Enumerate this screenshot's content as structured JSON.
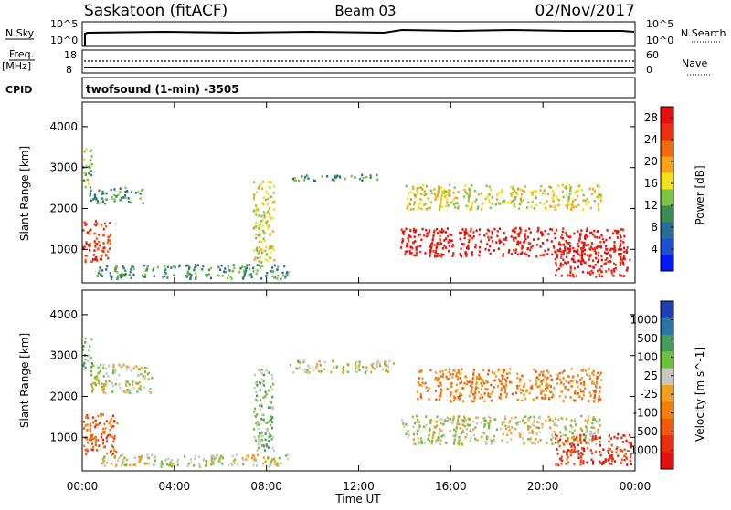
{
  "header": {
    "site": "Saskatoon (fitACF)",
    "beam": "Beam 03",
    "date": "02/Nov/2017"
  },
  "side_labels": {
    "nsky": "N.Sky",
    "nsky_top": "10^5",
    "nsky_bottom": "10^0",
    "nsearch": "N.Search",
    "nsearch_top": "10^5",
    "nsearch_bottom": "10^0",
    "freq": "Freq.",
    "freq_unit": "[MHz]",
    "freq_top": "18",
    "freq_bottom": "8",
    "nave": "Nave",
    "nave_top": "60",
    "nave_bottom": "0",
    "cpid": "CPID",
    "cpid_text": "twofsound (1-min) -3505"
  },
  "colors": {
    "power": [
      "#0019ff",
      "#1e4fd1",
      "#2a6e96",
      "#3c8c56",
      "#7bc446",
      "#f2e21a",
      "#f7a41a",
      "#f06a10",
      "#ea3010",
      "#e61010"
    ],
    "velocity": [
      "#1f3fb5",
      "#2c74a8",
      "#4b9a5d",
      "#6fc03a",
      "#c8c8c0",
      "#f0a020",
      "#f07f10",
      "#ef5a10",
      "#e82d10",
      "#e51010"
    ],
    "ground_scatter": "#c8c8c0"
  },
  "chart_data": [
    {
      "type": "heatmap",
      "name": "power",
      "xlabel": "",
      "ylabel": "Slant Range [km]",
      "xlim": [
        "00:00",
        "00:00"
      ],
      "ylim": [
        180,
        4600
      ],
      "x_ticks": [
        "00:00",
        "04:00",
        "08:00",
        "12:00",
        "16:00",
        "20:00",
        "00:00"
      ],
      "y_ticks": [
        1000,
        2000,
        3000,
        4000
      ],
      "colorbar": {
        "label": "Power [dB]",
        "ticks": [
          "4",
          "8",
          "12",
          "16",
          "20",
          "24",
          "28"
        ],
        "range": [
          0,
          30
        ]
      },
      "features": [
        {
          "t": [
            0.0,
            1.2
          ],
          "r": [
            700,
            1750
          ],
          "level": 8
        },
        {
          "t": [
            0.0,
            0.4
          ],
          "r": [
            2500,
            3500
          ],
          "level": 4
        },
        {
          "t": [
            0.3,
            2.6
          ],
          "r": [
            2150,
            2550
          ],
          "level": 3
        },
        {
          "t": [
            0.6,
            9.0
          ],
          "r": [
            300,
            650
          ],
          "level": 3
        },
        {
          "t": [
            7.4,
            8.3
          ],
          "r": [
            700,
            2700
          ],
          "level": 5
        },
        {
          "t": [
            9.0,
            13.0
          ],
          "r": [
            2700,
            2850
          ],
          "level": 3
        },
        {
          "t": [
            13.8,
            23.6
          ],
          "r": [
            850,
            1550
          ],
          "level": 9
        },
        {
          "t": [
            14.0,
            22.5
          ],
          "r": [
            2000,
            2600
          ],
          "level": 5
        },
        {
          "t": [
            20.5,
            23.8
          ],
          "r": [
            350,
            1100
          ],
          "level": 9
        }
      ]
    },
    {
      "type": "heatmap",
      "name": "velocity",
      "xlabel": "Time UT",
      "ylabel": "Slant Range [km]",
      "xlim": [
        "00:00",
        "00:00"
      ],
      "ylim": [
        180,
        4600
      ],
      "x_ticks": [
        "00:00",
        "04:00",
        "08:00",
        "12:00",
        "16:00",
        "20:00",
        "00:00"
      ],
      "y_ticks": [
        1000,
        2000,
        3000,
        4000
      ],
      "colorbar": {
        "label": "Velocity [m s^-1]",
        "ticks": [
          "1000",
          "500",
          "100",
          "25",
          "-25",
          "-100",
          "-500",
          "-1000"
        ],
        "range": [
          -1000,
          1000
        ]
      },
      "features": [
        {
          "t": [
            0.0,
            1.5
          ],
          "r": [
            600,
            1600
          ],
          "level": 7
        },
        {
          "t": [
            0.0,
            0.4
          ],
          "r": [
            2500,
            3500
          ],
          "level": 3
        },
        {
          "t": [
            0.3,
            3.0
          ],
          "r": [
            2100,
            2800
          ],
          "level": 4
        },
        {
          "t": [
            0.5,
            9.0
          ],
          "r": [
            300,
            600
          ],
          "level": 4
        },
        {
          "t": [
            7.4,
            8.3
          ],
          "r": [
            700,
            2700
          ],
          "level": 3
        },
        {
          "t": [
            9.0,
            13.5
          ],
          "r": [
            2600,
            2900
          ],
          "level": 4
        },
        {
          "t": [
            13.8,
            22.5
          ],
          "r": [
            850,
            1550
          ],
          "level": 4
        },
        {
          "t": [
            14.5,
            22.5
          ],
          "r": [
            1900,
            2700
          ],
          "level": 6
        },
        {
          "t": [
            20.5,
            23.8
          ],
          "r": [
            350,
            1100
          ],
          "level": 8
        }
      ]
    }
  ]
}
